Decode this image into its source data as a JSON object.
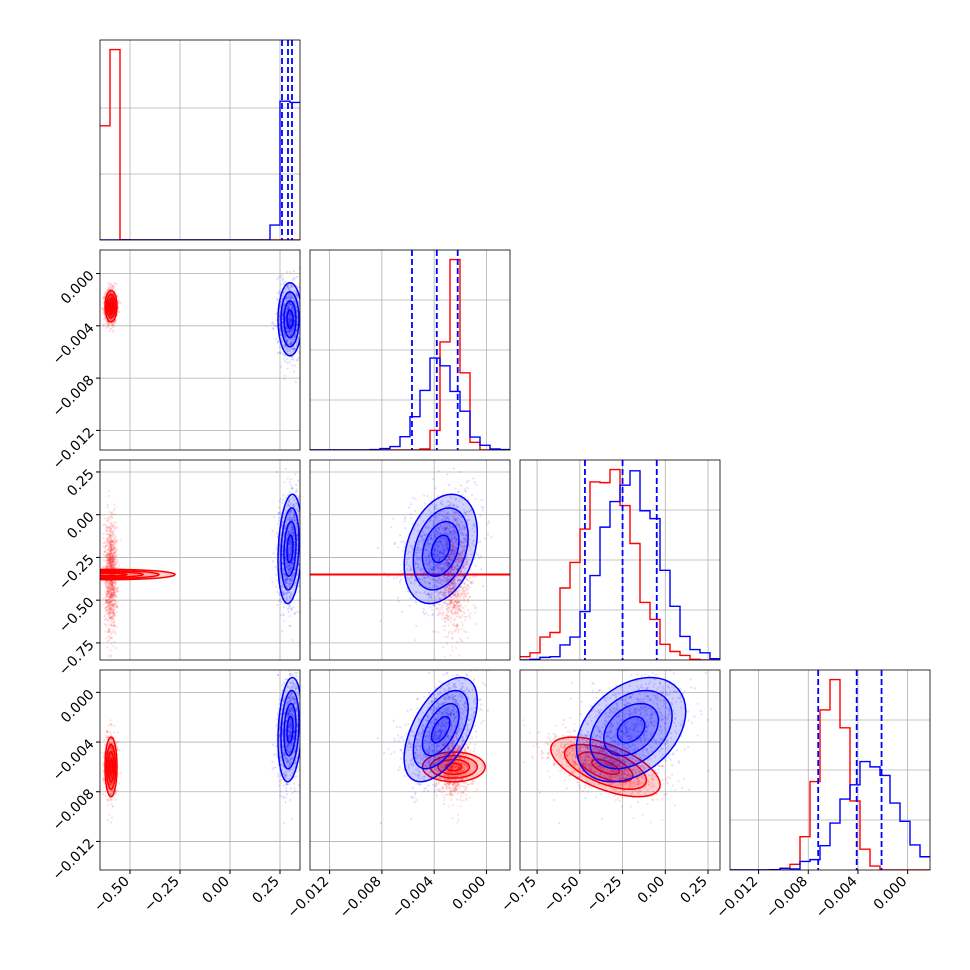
{
  "chart_data": {
    "type": "corner",
    "n_params": 4,
    "colors": {
      "red": "#ff0000",
      "blue": "#0000ff",
      "grid": "#b0b0b0"
    },
    "grid": true,
    "ranges": [
      [
        -0.65,
        0.35
      ],
      [
        -0.0135,
        0.0018
      ],
      [
        -0.85,
        0.32
      ],
      [
        -0.0143,
        0.0018
      ]
    ],
    "x_ticks": [
      {
        "values": [
          -0.5,
          -0.25,
          0.0,
          0.25
        ],
        "labels": [
          "−0.50",
          "−0.25",
          "0.00",
          "0.25"
        ]
      },
      {
        "values": [
          -0.012,
          -0.008,
          -0.004,
          0.0
        ],
        "labels": [
          "−0.012",
          "−0.008",
          "−0.004",
          "0.000"
        ]
      },
      {
        "values": [
          -0.75,
          -0.5,
          -0.25,
          0.0,
          0.25
        ],
        "labels": [
          "−0.75",
          "−0.50",
          "−0.25",
          "0.00",
          "0.25"
        ]
      },
      {
        "values": [
          -0.012,
          -0.008,
          -0.004,
          0.0
        ],
        "labels": [
          "−0.012",
          "−0.008",
          "−0.004",
          "0.000"
        ]
      }
    ],
    "y_ticks": [
      null,
      {
        "values": [
          0.0,
          -0.004,
          -0.008,
          -0.012
        ],
        "labels": [
          "0.000",
          "−0.004",
          "−0.008",
          "−0.012"
        ]
      },
      {
        "values": [
          0.25,
          0.0,
          -0.25,
          -0.5,
          -0.75
        ],
        "labels": [
          "0.25",
          "0.00",
          "−0.25",
          "−0.50",
          "−0.75"
        ]
      },
      {
        "values": [
          0.0,
          -0.004,
          -0.008,
          -0.012
        ],
        "labels": [
          "0.000",
          "−0.004",
          "−0.008",
          "−0.012"
        ]
      }
    ],
    "series": [
      {
        "color": "#ff0000",
        "mean": [
          -0.595,
          -0.0025,
          -0.35,
          -0.006
        ],
        "std": [
          0.015,
          0.0006,
          0.16,
          0.0012
        ],
        "corr": [
          [
            1,
            0,
            0,
            0
          ],
          [
            0,
            1,
            0,
            0
          ],
          [
            0,
            0,
            1,
            -0.6
          ],
          [
            0,
            0,
            -0.6,
            1
          ]
        ],
        "quantiles": null
      },
      {
        "color": "#0000ff",
        "mean": [
          0.3,
          -0.0035,
          -0.2,
          -0.003
        ],
        "std": [
          0.03,
          0.0014,
          0.16,
          0.0021
        ],
        "corr": [
          [
            1,
            0,
            0.2,
            0.2
          ],
          [
            0,
            1,
            0.3,
            0.55
          ],
          [
            0.2,
            0.3,
            1,
            0.35
          ],
          [
            0.2,
            0.55,
            0.35,
            1
          ]
        ],
        "quantiles": [
          [
            0.26,
            0.29,
            0.31
          ],
          [
            -0.0057,
            -0.0038,
            -0.0022
          ],
          [
            -0.47,
            -0.25,
            -0.05
          ],
          [
            -0.0072,
            -0.0041,
            -0.0021
          ]
        ]
      }
    ]
  }
}
